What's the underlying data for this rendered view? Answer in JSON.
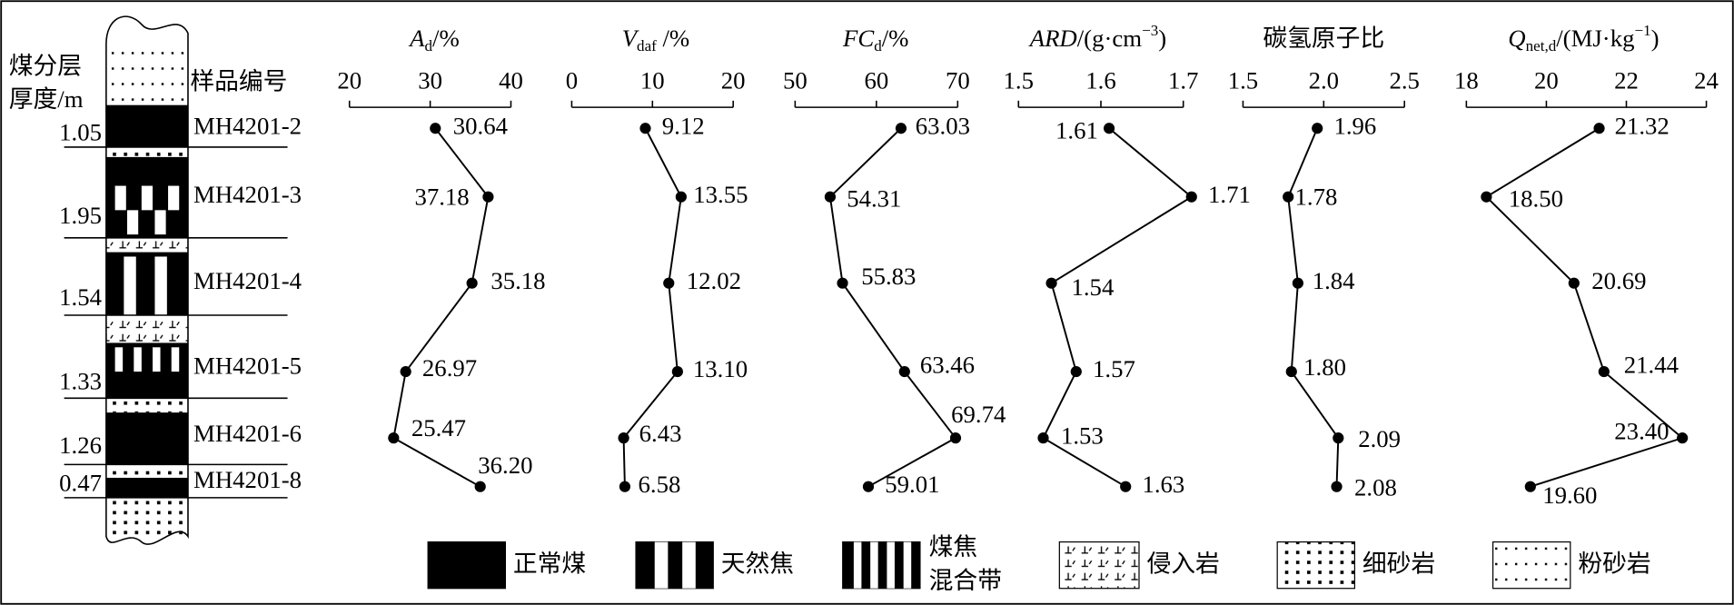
{
  "column": {
    "header_left": [
      "煤分层",
      "厚度/m"
    ],
    "header_samples": "样品编号",
    "thicknesses": [
      "1.05",
      "1.95",
      "1.54",
      "1.33",
      "1.26",
      "0.47"
    ],
    "samples": [
      "MH4201-2",
      "MH4201-3",
      "MH4201-4",
      "MH4201-5",
      "MH4201-6",
      "MH4201-8"
    ]
  },
  "legend": [
    [
      "正常煤"
    ],
    [
      "天然焦"
    ],
    [
      "煤焦",
      "混合带"
    ],
    [
      "侵入岩"
    ],
    [
      "细砂岩"
    ],
    [
      "粉砂岩"
    ]
  ],
  "chart_data": [
    {
      "type": "line",
      "title": [
        "A",
        "d",
        "/%"
      ],
      "title_format": [
        "italic",
        "sub",
        "normal"
      ],
      "values": [
        30.64,
        37.18,
        35.18,
        26.97,
        25.47,
        36.2
      ],
      "value_labels": [
        "30.64",
        "37.18",
        "35.18",
        "26.97",
        "25.47",
        "36.20"
      ],
      "xlim": [
        20,
        40
      ],
      "xticks": [
        20,
        30,
        40
      ],
      "color": "#000000"
    },
    {
      "type": "line",
      "title": [
        "V",
        "daf",
        " /%"
      ],
      "title_format": [
        "italic",
        "sub",
        "normal"
      ],
      "values": [
        9.12,
        13.55,
        12.02,
        13.1,
        6.43,
        6.58
      ],
      "value_labels": [
        "9.12",
        "13.55",
        "12.02",
        "13.10",
        "6.43",
        "6.58"
      ],
      "xlim": [
        0,
        20
      ],
      "xticks": [
        0,
        10,
        20
      ],
      "color": "#000000"
    },
    {
      "type": "line",
      "title": [
        "FC",
        "d",
        "/%"
      ],
      "title_format": [
        "italic",
        "sub",
        "normal"
      ],
      "values": [
        63.03,
        54.31,
        55.83,
        63.46,
        69.74,
        59.01
      ],
      "value_labels": [
        "63.03",
        "54.31",
        "55.83",
        "63.46",
        "69.74",
        "59.01"
      ],
      "xlim": [
        50,
        70
      ],
      "xticks": [
        50,
        60,
        70
      ],
      "color": "#000000"
    },
    {
      "type": "line",
      "title": [
        "ARD",
        "/(g·cm",
        "−3",
        ")"
      ],
      "title_format": [
        "italic",
        "normal",
        "sup",
        "normal"
      ],
      "values": [
        1.61,
        1.71,
        1.54,
        1.57,
        1.53,
        1.63
      ],
      "value_labels": [
        "1.61",
        "1.71",
        "1.54",
        "1.57",
        "1.53",
        "1.63"
      ],
      "xlim": [
        1.5,
        1.7
      ],
      "xticks": [
        1.5,
        1.6,
        1.7
      ],
      "color": "#000000"
    },
    {
      "type": "line",
      "title": [
        "碳氢原子比"
      ],
      "title_format": [
        "normal"
      ],
      "values": [
        1.96,
        1.78,
        1.84,
        1.8,
        2.09,
        2.08
      ],
      "value_labels": [
        "1.96",
        "1.78",
        "1.84",
        "1.80",
        "2.09",
        "2.08"
      ],
      "xlim": [
        1.5,
        2.5
      ],
      "xticks": [
        1.5,
        {
          "value": 2,
          "label": "2.0"
        },
        2.5
      ],
      "color": "#000000"
    },
    {
      "type": "line",
      "title": [
        "Q",
        "net,d",
        "/(MJ·kg",
        "−1",
        ")"
      ],
      "title_format": [
        "italic",
        "sub",
        "normal",
        "sup",
        "normal"
      ],
      "values": [
        21.32,
        18.5,
        20.69,
        21.44,
        23.4,
        19.6
      ],
      "value_labels": [
        "21.32",
        "18.50",
        "20.69",
        "21.44",
        "23.40",
        "19.60"
      ],
      "xlim": [
        18,
        24
      ],
      "xticks": [
        18,
        20,
        22,
        24
      ],
      "color": "#000000"
    }
  ]
}
